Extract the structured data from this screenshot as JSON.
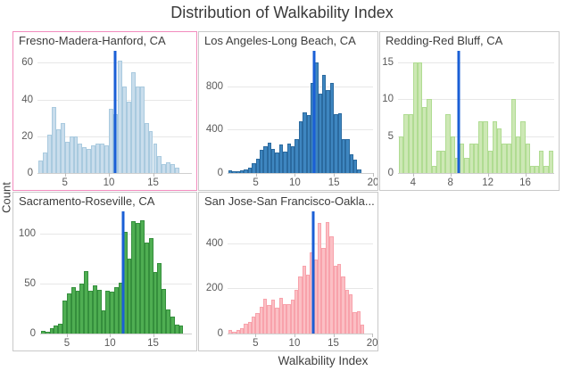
{
  "page_title": "Distribution of Walkability Index",
  "axes": {
    "ylabel": "Count",
    "xlabel": "Walkability Index"
  },
  "colors": {
    "mean_line": "#1A5FD6",
    "grid": "#E7E7E7",
    "card_border": "#C9C9C9",
    "selected_border": "#F28CBE",
    "title_text": "#3A3A3A",
    "tick_text": "#5A5A5A"
  },
  "chart_data": [
    {
      "type": "histogram",
      "title": "Fresno-Madera-Hanford, CA",
      "selected": true,
      "fill": "#C9DDEC",
      "stroke": "#A9CADF",
      "bin_start": 2.0,
      "bin_width": 0.5,
      "values": [
        7,
        11,
        21,
        36,
        24,
        27,
        17,
        20,
        20,
        16,
        14,
        13,
        15,
        16,
        16,
        15,
        35,
        32,
        61,
        47,
        39,
        55,
        47,
        47,
        27,
        23,
        16,
        9,
        5,
        6,
        5,
        3
      ],
      "mean_line": 10.7,
      "yticks": [
        0,
        20,
        40,
        60
      ],
      "ymax": 65,
      "xticks": [
        5,
        10,
        15
      ],
      "xmin": 1.9,
      "xmax": 19.4,
      "yaxis_width": 27
    },
    {
      "type": "histogram",
      "title": "Los Angeles-Long Beach, CA",
      "selected": false,
      "fill": "#3E86C0",
      "stroke": "#2B6A9F",
      "bin_start": 1.5,
      "bin_width": 0.5,
      "values": [
        25,
        15,
        20,
        25,
        35,
        50,
        90,
        130,
        215,
        250,
        280,
        225,
        185,
        265,
        195,
        270,
        250,
        310,
        475,
        560,
        530,
        830,
        1020,
        730,
        900,
        760,
        830,
        545,
        550,
        310,
        315,
        170,
        120,
        30
      ],
      "mean_line": 12.45,
      "yticks": [
        0,
        400,
        800
      ],
      "ymax": 1100,
      "xticks": [
        5,
        10,
        15,
        20
      ],
      "xmin": 1.4,
      "xmax": 20.0,
      "yaxis_width": 32
    },
    {
      "type": "histogram",
      "title": "Redding-Red Bluff, CA",
      "selected": false,
      "fill": "#CDE8B5",
      "stroke": "#B0DC92",
      "bin_start": 2.5,
      "bin_width": 0.5,
      "values": [
        5,
        8,
        8,
        15,
        15,
        9,
        10,
        1,
        3,
        3,
        8,
        5,
        2,
        4,
        2,
        4,
        4,
        7,
        7,
        3,
        7,
        6,
        4,
        4,
        10,
        5,
        7,
        4,
        1,
        1,
        3,
        1,
        3
      ],
      "mean_line": 8.9,
      "yticks": [
        0,
        5,
        10,
        15
      ],
      "ymax": 16.2,
      "xticks": [
        4,
        8,
        12,
        16
      ],
      "xmin": 2.4,
      "xmax": 19.1,
      "yaxis_width": 20
    },
    {
      "type": "histogram",
      "title": "Sacramento-Roseville, CA",
      "selected": false,
      "fill": "#4FAE52",
      "stroke": "#358F3D",
      "bin_start": 2.0,
      "bin_width": 0.5,
      "values": [
        3,
        2,
        5,
        8,
        10,
        33,
        40,
        47,
        43,
        50,
        63,
        43,
        48,
        44,
        23,
        43,
        42,
        47,
        51,
        102,
        75,
        113,
        111,
        114,
        91,
        96,
        62,
        71,
        45,
        24,
        17,
        9,
        8
      ],
      "mean_line": 11.5,
      "yticks": [
        0,
        50,
        100
      ],
      "ymax": 120,
      "xticks": [
        5,
        10,
        15
      ],
      "xmin": 1.9,
      "xmax": 19.5,
      "yaxis_width": 30
    },
    {
      "type": "histogram",
      "title": "San Jose-San Francisco-Oakla...",
      "selected": false,
      "fill": "#FBBFC4",
      "stroke": "#F8A2AB",
      "bin_start": 1.5,
      "bin_width": 0.5,
      "values": [
        15,
        8,
        15,
        25,
        45,
        50,
        75,
        90,
        120,
        155,
        125,
        150,
        115,
        160,
        130,
        130,
        150,
        195,
        255,
        300,
        260,
        360,
        330,
        490,
        380,
        495,
        430,
        300,
        310,
        255,
        195,
        175,
        95,
        100,
        40
      ],
      "mean_line": 12.4,
      "yticks": [
        0,
        200,
        400
      ],
      "ymax": 530,
      "xticks": [
        5,
        10,
        15,
        20
      ],
      "xmin": 1.4,
      "xmax": 20.1,
      "yaxis_width": 32
    }
  ]
}
